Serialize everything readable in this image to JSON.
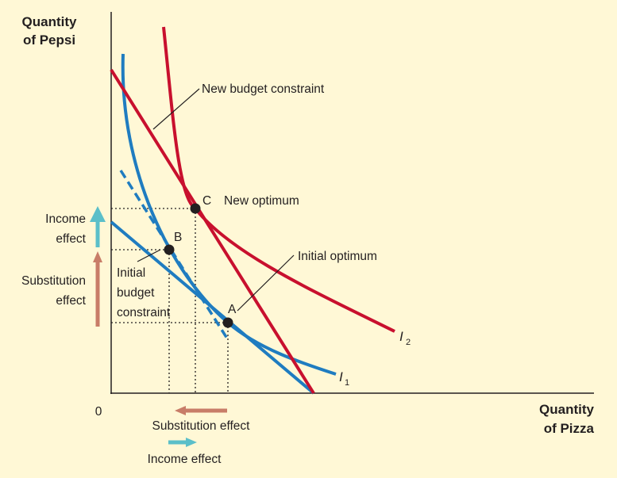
{
  "chart_data": {
    "type": "diagram",
    "y_axis_label": [
      "Quantity",
      "of Pepsi"
    ],
    "x_axis_label": [
      "Quantity",
      "of Pizza"
    ],
    "origin_label": "0",
    "curves": {
      "new_budget_constraint": "New budget constraint",
      "initial_budget_constraint": [
        "Initial",
        "budget",
        "constraint"
      ],
      "indifference_1": {
        "letter": "I",
        "subscript": "1"
      },
      "indifference_2": {
        "letter": "I",
        "subscript": "2"
      }
    },
    "points": {
      "A": {
        "label": "A",
        "annotation": "Initial optimum"
      },
      "B": {
        "label": "B"
      },
      "C": {
        "label": "C",
        "annotation": "New optimum"
      }
    },
    "effects": {
      "income_effect_y": [
        "Income",
        "effect"
      ],
      "substitution_effect_y": [
        "Substitution",
        "effect"
      ],
      "substitution_effect_x": "Substitution effect",
      "income_effect_x": "Income effect"
    },
    "colors": {
      "background": "#fff8d6",
      "blue": "#1f7cc0",
      "red": "#c8102e",
      "income_arrow": "#5bbfc9",
      "substitution_arrow": "#c87d68",
      "axis": "#231f20"
    }
  }
}
